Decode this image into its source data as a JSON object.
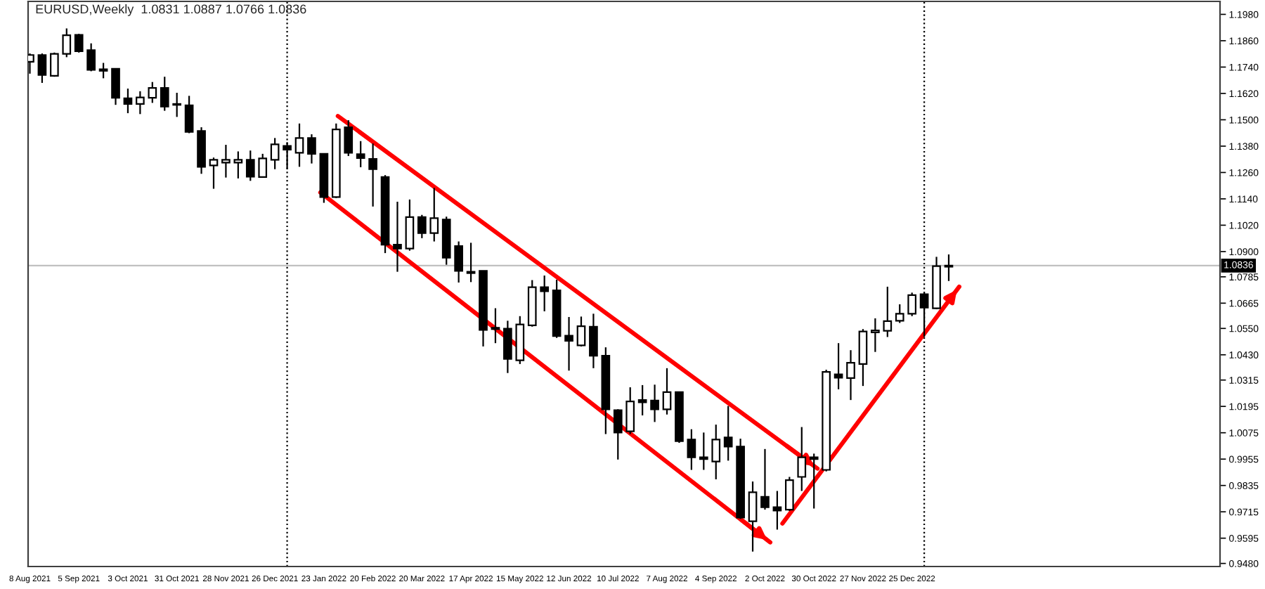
{
  "chart_data": {
    "type": "candlestick",
    "title": "EURUSD,Weekly  1.0831 1.0887 1.0766 1.0836",
    "color": "#000000",
    "x": [
      "2021-08-08",
      "2021-08-15",
      "2021-08-22",
      "2021-08-29",
      "2021-09-05",
      "2021-09-12",
      "2021-09-19",
      "2021-09-26",
      "2021-10-03",
      "2021-10-10",
      "2021-10-17",
      "2021-10-24",
      "2021-10-31",
      "2021-11-07",
      "2021-11-14",
      "2021-11-21",
      "2021-11-28",
      "2021-12-05",
      "2021-12-12",
      "2021-12-19",
      "2021-12-26",
      "2022-01-02",
      "2022-01-09",
      "2022-01-16",
      "2022-01-23",
      "2022-01-30",
      "2022-02-06",
      "2022-02-13",
      "2022-02-20",
      "2022-02-27",
      "2022-03-06",
      "2022-03-13",
      "2022-03-20",
      "2022-03-27",
      "2022-04-03",
      "2022-04-10",
      "2022-04-17",
      "2022-04-24",
      "2022-05-01",
      "2022-05-08",
      "2022-05-15",
      "2022-05-22",
      "2022-05-29",
      "2022-06-05",
      "2022-06-12",
      "2022-06-19",
      "2022-06-26",
      "2022-07-03",
      "2022-07-10",
      "2022-07-17",
      "2022-07-24",
      "2022-07-31",
      "2022-08-07",
      "2022-08-14",
      "2022-08-21",
      "2022-08-28",
      "2022-09-04",
      "2022-09-11",
      "2022-09-18",
      "2022-09-25",
      "2022-10-02",
      "2022-10-09",
      "2022-10-16",
      "2022-10-23",
      "2022-10-30",
      "2022-11-06",
      "2022-11-13",
      "2022-11-20",
      "2022-11-27",
      "2022-12-04",
      "2022-12-11",
      "2022-12-18",
      "2022-12-25",
      "2023-01-01",
      "2023-01-08",
      "2023-01-15"
    ],
    "ohlc": [
      [
        1.1764,
        1.1802,
        1.171,
        1.1795
      ],
      [
        1.1795,
        1.1802,
        1.1668,
        1.1704
      ],
      [
        1.17,
        1.1806,
        1.1696,
        1.18
      ],
      [
        1.18,
        1.1916,
        1.1785,
        1.1885
      ],
      [
        1.1887,
        1.1891,
        1.1806,
        1.1812
      ],
      [
        1.1817,
        1.1848,
        1.1721,
        1.1727
      ],
      [
        1.173,
        1.1759,
        1.1689,
        1.1723
      ],
      [
        1.1732,
        1.1732,
        1.1568,
        1.16
      ],
      [
        1.1598,
        1.1642,
        1.153,
        1.1572
      ],
      [
        1.1572,
        1.163,
        1.1526,
        1.1602
      ],
      [
        1.16,
        1.1672,
        1.1577,
        1.1645
      ],
      [
        1.1645,
        1.1696,
        1.1541,
        1.156
      ],
      [
        1.1572,
        1.1623,
        1.1513,
        1.1568
      ],
      [
        1.1566,
        1.1609,
        1.1439,
        1.1445
      ],
      [
        1.1449,
        1.1466,
        1.1254,
        1.1286
      ],
      [
        1.1292,
        1.1328,
        1.1186,
        1.1318
      ],
      [
        1.1305,
        1.1386,
        1.1237,
        1.1318
      ],
      [
        1.1305,
        1.1356,
        1.1233,
        1.1318
      ],
      [
        1.1318,
        1.136,
        1.1222,
        1.1241
      ],
      [
        1.1239,
        1.1345,
        1.1237,
        1.1324
      ],
      [
        1.1318,
        1.1417,
        1.1275,
        1.1388
      ],
      [
        1.1381,
        1.1398,
        1.1275,
        1.1364
      ],
      [
        1.135,
        1.1483,
        1.1286,
        1.1417
      ],
      [
        1.1417,
        1.1434,
        1.1301,
        1.1345
      ],
      [
        1.1345,
        1.1347,
        1.1122,
        1.1148
      ],
      [
        1.1148,
        1.1483,
        1.1144,
        1.1456
      ],
      [
        1.1466,
        1.1498,
        1.1335,
        1.135
      ],
      [
        1.1343,
        1.1403,
        1.1284,
        1.1326
      ],
      [
        1.1322,
        1.1392,
        1.1105,
        1.1275
      ],
      [
        1.1239,
        1.1248,
        1.0893,
        1.0931
      ],
      [
        1.0931,
        1.1127,
        1.0808,
        1.0914
      ],
      [
        1.0914,
        1.1137,
        1.0904,
        1.1057
      ],
      [
        1.1057,
        1.1067,
        1.0961,
        1.0984
      ],
      [
        1.0984,
        1.119,
        1.0946,
        1.1052
      ],
      [
        1.1046,
        1.1059,
        1.084,
        1.0872
      ],
      [
        1.0925,
        1.0946,
        1.0759,
        1.0812
      ],
      [
        1.0808,
        1.094,
        1.0761,
        1.0802
      ],
      [
        1.0812,
        1.0812,
        1.0468,
        1.0543
      ],
      [
        1.0553,
        1.0642,
        1.0483,
        1.0547
      ],
      [
        1.0549,
        1.0585,
        1.0347,
        1.0411
      ],
      [
        1.0405,
        1.0606,
        1.0388,
        1.0568
      ],
      [
        1.0564,
        1.077,
        1.0558,
        1.0738
      ],
      [
        1.0738,
        1.0791,
        1.0628,
        1.0719
      ],
      [
        1.0723,
        1.0772,
        1.0507,
        1.0515
      ],
      [
        1.0517,
        1.0602,
        1.0358,
        1.0494
      ],
      [
        1.0473,
        1.0604,
        1.0468,
        1.056
      ],
      [
        1.0558,
        1.0617,
        1.0369,
        1.0426
      ],
      [
        1.0426,
        1.0464,
        1.0069,
        1.0182
      ],
      [
        1.0178,
        1.0182,
        0.9953,
        1.0076
      ],
      [
        1.0082,
        1.0282,
        1.0069,
        1.0218
      ],
      [
        1.0224,
        1.0292,
        1.0154,
        1.0214
      ],
      [
        1.0222,
        1.0294,
        1.0124,
        1.0182
      ],
      [
        1.0182,
        1.0369,
        1.0158,
        1.026
      ],
      [
        1.026,
        1.026,
        1.0029,
        1.0037
      ],
      [
        1.0044,
        1.0091,
        0.9906,
        0.9963
      ],
      [
        0.9963,
        1.0076,
        0.9906,
        0.9955
      ],
      [
        0.9944,
        1.0112,
        0.9863,
        1.0044
      ],
      [
        1.0054,
        1.0197,
        0.9948,
        1.0012
      ],
      [
        1.0012,
        1.0048,
        0.9683,
        0.9689
      ],
      [
        0.9672,
        0.9853,
        0.9534,
        0.9804
      ],
      [
        0.9783,
        1.0001,
        0.9725,
        0.9736
      ],
      [
        0.9736,
        0.981,
        0.9634,
        0.9721
      ],
      [
        0.9725,
        0.9874,
        0.9719,
        0.9859
      ],
      [
        0.9874,
        1.0101,
        0.981,
        0.9963
      ],
      [
        0.9963,
        0.998,
        0.973,
        0.9955
      ],
      [
        0.9906,
        1.0362,
        0.9899,
        1.0352
      ],
      [
        1.0341,
        1.0483,
        1.0273,
        1.0326
      ],
      [
        1.0324,
        1.0451,
        1.0224,
        1.0394
      ],
      [
        1.0388,
        1.0547,
        1.0288,
        1.0536
      ],
      [
        1.0532,
        1.0596,
        1.0443,
        1.0541
      ],
      [
        1.0539,
        1.074,
        1.0511,
        1.0583
      ],
      [
        1.0585,
        1.066,
        1.0575,
        1.0617
      ],
      [
        1.0617,
        1.0713,
        1.0606,
        1.0702
      ],
      [
        1.0706,
        1.0713,
        1.0511,
        1.0645
      ],
      [
        1.0642,
        1.0876,
        1.0638,
        1.0834
      ],
      [
        1.0831,
        1.0887,
        1.0766,
        1.0836
      ]
    ],
    "colors": [
      "#ffffff",
      "#000000",
      "#ffffff",
      "#ffffff",
      "#000000",
      "#000000",
      "#000000",
      "#000000",
      "#000000",
      "#ffffff",
      "#ffffff",
      "#000000",
      "#000000",
      "#000000",
      "#000000",
      "#ffffff",
      "#ffffff",
      "#ffffff",
      "#000000",
      "#ffffff",
      "#ffffff",
      "#000000",
      "#ffffff",
      "#000000",
      "#000000",
      "#ffffff",
      "#000000",
      "#000000",
      "#000000",
      "#000000",
      "#000000",
      "#ffffff",
      "#000000",
      "#ffffff",
      "#000000",
      "#000000",
      "#000000",
      "#000000",
      "#000000",
      "#000000",
      "#ffffff",
      "#ffffff",
      "#000000",
      "#000000",
      "#000000",
      "#ffffff",
      "#000000",
      "#000000",
      "#000000",
      "#ffffff",
      "#000000",
      "#000000",
      "#ffffff",
      "#000000",
      "#000000",
      "#000000",
      "#ffffff",
      "#000000",
      "#000000",
      "#ffffff",
      "#000000",
      "#000000",
      "#ffffff",
      "#ffffff",
      "#000000",
      "#ffffff",
      "#000000",
      "#ffffff",
      "#ffffff",
      "#ffffff",
      "#ffffff",
      "#ffffff",
      "#ffffff",
      "#000000",
      "#ffffff",
      "#ffffff"
    ],
    "series": [
      {
        "type": "line",
        "color": "#ff0000",
        "x": [
          "2022-01-31",
          "2022-11-01"
        ],
        "values": [
          1.1517,
          0.9912
        ]
      },
      {
        "type": "line",
        "color": "#ff0000",
        "x": [
          "2022-01-21",
          "2022-10-05"
        ],
        "values": [
          1.1169,
          0.9576
        ]
      },
      {
        "type": "line",
        "color": "#ff0000",
        "x": [
          "2022-10-12",
          "2023-01-21"
        ],
        "values": [
          0.9662,
          1.074
        ]
      }
    ],
    "ref_lines": [
      {
        "axis": "y",
        "value": 1.0836,
        "label": "1.0836",
        "color": "#c0c0c0"
      },
      {
        "axis": "x",
        "value": "2022-01-02",
        "label": null,
        "color": "#000000",
        "line_style": "dotted"
      },
      {
        "axis": "x",
        "value": "2023-01-01",
        "label": null,
        "color": "#000000",
        "line_style": "dotted"
      }
    ],
    "xlim": [
      "2021-08-07",
      "2023-06-19"
    ],
    "xticks": [
      {
        "value": "2021-08-08",
        "label": "8 Aug 2021"
      },
      {
        "value": "2021-09-05",
        "label": "5 Sep 2021"
      },
      {
        "value": "2021-10-03",
        "label": "3 Oct 2021"
      },
      {
        "value": "2021-10-31",
        "label": "31 Oct 2021"
      },
      {
        "value": "2021-11-28",
        "label": "28 Nov 2021"
      },
      {
        "value": "2021-12-26",
        "label": "26 Dec 2021"
      },
      {
        "value": "2022-01-23",
        "label": "23 Jan 2022"
      },
      {
        "value": "2022-02-20",
        "label": "20 Feb 2022"
      },
      {
        "value": "2022-03-20",
        "label": "20 Mar 2022"
      },
      {
        "value": "2022-04-17",
        "label": "17 Apr 2022"
      },
      {
        "value": "2022-05-15",
        "label": "15 May 2022"
      },
      {
        "value": "2022-06-12",
        "label": "12 Jun 2022"
      },
      {
        "value": "2022-07-10",
        "label": "10 Jul 2022"
      },
      {
        "value": "2022-08-07",
        "label": "7 Aug 2022"
      },
      {
        "value": "2022-09-04",
        "label": "4 Sep 2022"
      },
      {
        "value": "2022-10-02",
        "label": "2 Oct 2022"
      },
      {
        "value": "2022-10-30",
        "label": "30 Oct 2022"
      },
      {
        "value": "2022-11-27",
        "label": "27 Nov 2022"
      },
      {
        "value": "2022-12-25",
        "label": "25 Dec 2022"
      }
    ],
    "ylim": [
      0.9466,
      1.2039
    ],
    "yticks": [
      {
        "value": 1.198,
        "label": "1.1980"
      },
      {
        "value": 1.186,
        "label": "1.1860"
      },
      {
        "value": 1.174,
        "label": "1.1740"
      },
      {
        "value": 1.162,
        "label": "1.1620"
      },
      {
        "value": 1.15,
        "label": "1.1500"
      },
      {
        "value": 1.138,
        "label": "1.1380"
      },
      {
        "value": 1.126,
        "label": "1.1260"
      },
      {
        "value": 1.114,
        "label": "1.1140"
      },
      {
        "value": 1.102,
        "label": "1.1020"
      },
      {
        "value": 1.09,
        "label": "1.0900"
      },
      {
        "value": 1.0785,
        "label": "1.0785"
      },
      {
        "value": 1.0665,
        "label": "1.0665"
      },
      {
        "value": 1.055,
        "label": "1.0550"
      },
      {
        "value": 1.043,
        "label": "1.0430"
      },
      {
        "value": 1.0315,
        "label": "1.0315"
      },
      {
        "value": 1.0195,
        "label": "1.0195"
      },
      {
        "value": 1.0075,
        "label": "1.0075"
      },
      {
        "value": 0.9955,
        "label": "0.9955"
      },
      {
        "value": 0.9835,
        "label": "0.9835"
      },
      {
        "value": 0.9715,
        "label": "0.9715"
      },
      {
        "value": 0.9595,
        "label": "0.9595"
      },
      {
        "value": 0.948,
        "label": "0.9480"
      }
    ]
  }
}
